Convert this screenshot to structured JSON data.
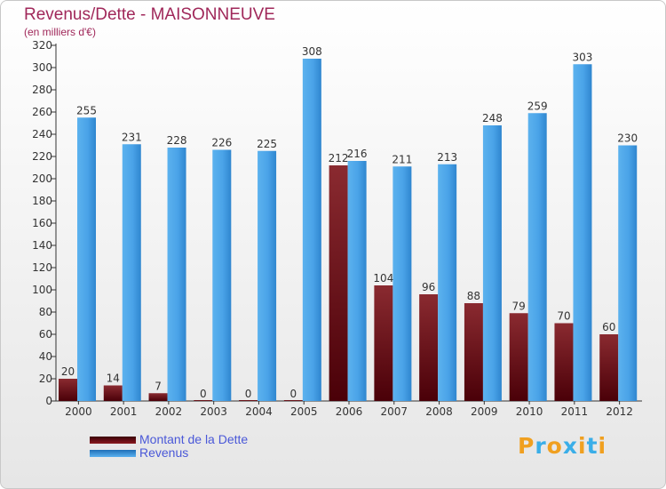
{
  "chart_data": {
    "type": "bar",
    "title": "Revenus/Dette - MAISONNEUVE",
    "subtitle": "(en milliers d'€)",
    "categories": [
      "2000",
      "2001",
      "2002",
      "2003",
      "2004",
      "2005",
      "2006",
      "2007",
      "2008",
      "2009",
      "2010",
      "2011",
      "2012"
    ],
    "series": [
      {
        "name": "Montant de la Dette",
        "color": "#7a1418",
        "values": [
          20,
          14,
          7,
          0,
          0,
          0,
          212,
          104,
          96,
          88,
          79,
          70,
          60
        ]
      },
      {
        "name": "Revenus",
        "color": "#4aa3e8",
        "values": [
          255,
          231,
          228,
          226,
          225,
          308,
          216,
          211,
          213,
          248,
          259,
          303,
          230
        ]
      }
    ],
    "ylim": [
      0,
      320
    ],
    "ytick_step": 20,
    "grid": false,
    "legend_position": "bottom-left"
  },
  "brand": {
    "letters": [
      "P",
      "r",
      "o",
      "x",
      "i",
      "t",
      "i"
    ],
    "colors": [
      "#f0a020",
      "#3aaee8",
      "#f0a020",
      "#3aaee8",
      "#f0a020",
      "#3aaee8",
      "#f0a020"
    ]
  }
}
